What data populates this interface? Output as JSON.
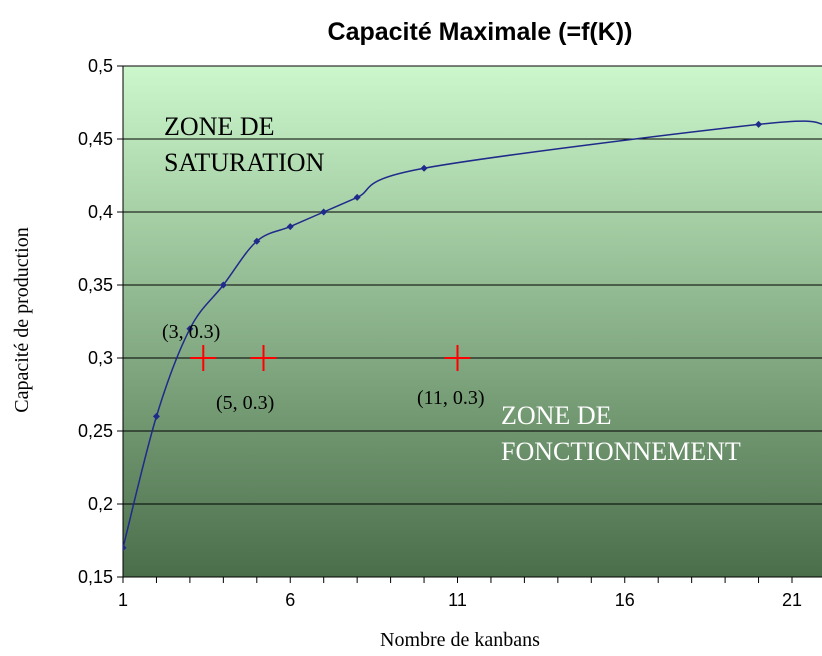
{
  "chart_data": {
    "type": "line",
    "title": "Capacité Maximale (=f(K))",
    "xlabel": "Nombre de kanbans",
    "ylabel": "Capacité de production",
    "xlim": [
      1,
      22
    ],
    "ylim": [
      0.15,
      0.5
    ],
    "x_ticks": [
      "1",
      "6",
      "11",
      "16",
      "21"
    ],
    "y_ticks": [
      "0,15",
      "0,2",
      "0,25",
      "0,3",
      "0,35",
      "0,4",
      "0,45",
      "0,5"
    ],
    "grid": true,
    "series": [
      {
        "x": [
          1,
          2,
          3,
          4,
          5,
          6,
          7,
          8,
          10,
          20,
          22
        ],
        "y": [
          0.17,
          0.26,
          0.32,
          0.35,
          0.38,
          0.39,
          0.4,
          0.41,
          0.43,
          0.46,
          0.46
        ],
        "color": "#1f2a8a"
      }
    ],
    "points": [
      {
        "x": 3.4,
        "y": 0.3
      },
      {
        "x": 5.2,
        "y": 0.3
      },
      {
        "x": 11,
        "y": 0.3
      }
    ],
    "annotations": [
      {
        "text": "(3, 0.3)"
      },
      {
        "text": "(5, 0.3)"
      },
      {
        "text": "(11, 0.3)"
      }
    ],
    "zones": {
      "saturation": [
        "ZONE DE",
        "SATURATION"
      ],
      "fonctionnement": [
        "ZONE DE",
        "FONCTIONNEMENT"
      ]
    },
    "background_gradient": {
      "top": "#ccf7cc",
      "bottom": "#4a6e4a"
    },
    "marker_color": "#ff0000"
  }
}
